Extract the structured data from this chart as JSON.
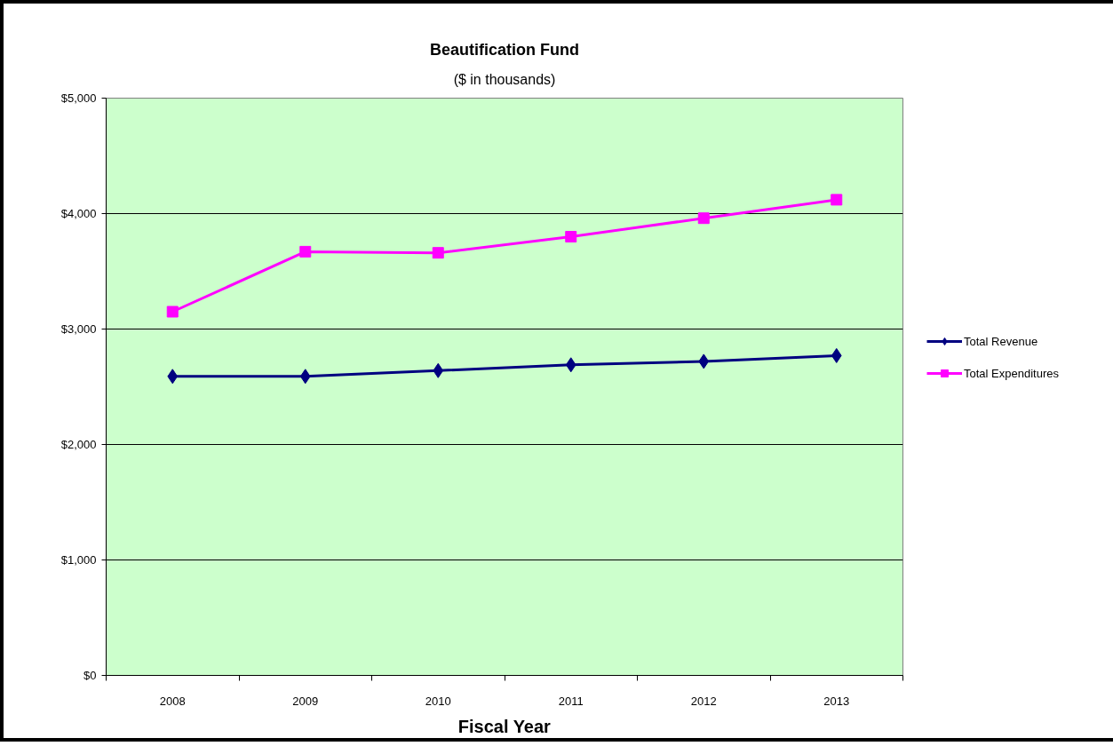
{
  "chart_data": {
    "type": "line",
    "title": "Beautification Fund",
    "subtitle": "($ in thousands)",
    "xlabel": "Fiscal Year",
    "categories": [
      "2008",
      "2009",
      "2010",
      "2011",
      "2012",
      "2013"
    ],
    "series": [
      {
        "name": "Total Revenue",
        "color": "#000080",
        "marker": "diamond",
        "values": [
          2590,
          2590,
          2640,
          2690,
          2720,
          2770
        ]
      },
      {
        "name": "Total Expenditures",
        "color": "#ff00ff",
        "marker": "square",
        "values": [
          3150,
          3670,
          3660,
          3800,
          3960,
          4120
        ]
      }
    ],
    "ylim": [
      0,
      5000
    ],
    "yticks": [
      {
        "value": 0,
        "label": "$0"
      },
      {
        "value": 1000,
        "label": "$1,000"
      },
      {
        "value": 2000,
        "label": "$2,000"
      },
      {
        "value": 3000,
        "label": "$3,000"
      },
      {
        "value": 4000,
        "label": "$4,000"
      },
      {
        "value": 5000,
        "label": "$5,000"
      }
    ],
    "grid": "y",
    "legend": "right",
    "line_style": "solid"
  }
}
